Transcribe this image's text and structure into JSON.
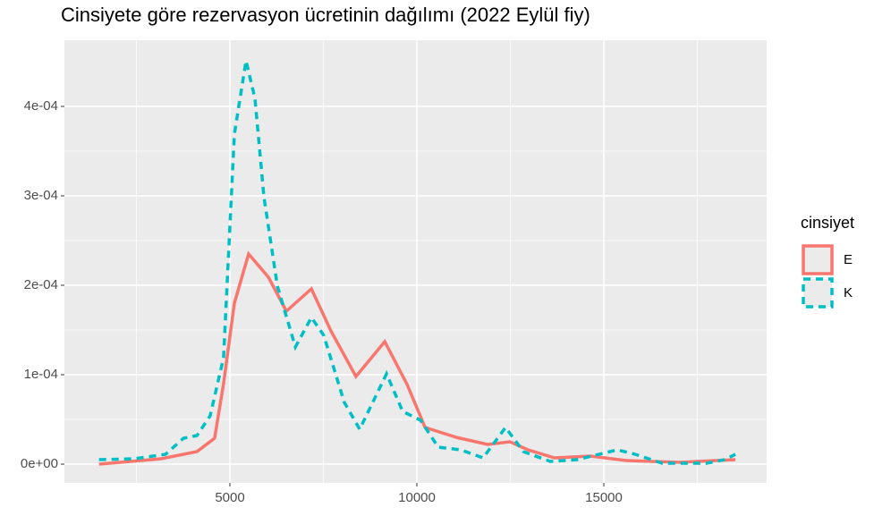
{
  "chart_data": {
    "type": "line",
    "title": "Cinsiyete göre rezervasyon ücretinin dağılımı (2022 Eylül fiy)",
    "legend_title": "cinsiyet",
    "legend": "right",
    "grid": true,
    "xlim": [
      574,
      19354
    ],
    "ylim": [
      -2.1e-05,
      0.000474
    ],
    "xticks": [
      5000,
      10000,
      15000
    ],
    "xminor": [
      2500,
      7500,
      12500,
      17500
    ],
    "yticks": [
      {
        "value": 0,
        "label": "0e+00"
      },
      {
        "value": 0.0001,
        "label": "1e-04"
      },
      {
        "value": 0.0002,
        "label": "2e-04"
      },
      {
        "value": 0.0003,
        "label": "3e-04"
      },
      {
        "value": 0.0004,
        "label": "4e-04"
      }
    ],
    "yminor": [
      5e-05,
      0.00015,
      0.00025,
      0.00035
    ],
    "series": [
      {
        "name": "E",
        "color": "#f8766d",
        "linetype": "solid",
        "x": [
          1500,
          3160,
          4120,
          4590,
          4830,
          5120,
          5500,
          6030,
          6510,
          7180,
          7700,
          8370,
          9140,
          9740,
          10220,
          11050,
          11890,
          12490,
          12970,
          13680,
          14640,
          15600,
          17030,
          17990,
          18520
        ],
        "values": [
          0,
          6e-06,
          1.4e-05,
          2.9e-05,
          9e-05,
          0.00018,
          0.000235,
          0.000209,
          0.000171,
          0.000196,
          0.000149,
          9.8e-05,
          0.000137,
          8.9e-05,
          4.1e-05,
          3e-05,
          2.2e-05,
          2.5e-05,
          1.6e-05,
          7e-06,
          9e-06,
          4e-06,
          2e-06,
          4e-06,
          5e-06
        ]
      },
      {
        "name": "K",
        "color": "#00bfc4",
        "linetype": "dashed",
        "x": [
          1500,
          2440,
          3280,
          3760,
          4120,
          4470,
          4830,
          5120,
          5430,
          5670,
          5910,
          6270,
          6750,
          7180,
          7510,
          8060,
          8470,
          9190,
          9620,
          10100,
          10570,
          11170,
          11770,
          12370,
          12850,
          13570,
          14280,
          15360,
          15840,
          16560,
          17750,
          18230,
          18520
        ],
        "values": [
          5e-06,
          6e-06,
          1.1e-05,
          2.9e-05,
          3.2e-05,
          5.4e-05,
          0.000119,
          0.000369,
          0.000451,
          0.000409,
          0.000299,
          0.000199,
          0.000131,
          0.000164,
          0.000144,
          6.9e-05,
          3.9e-05,
          0.000101,
          5.9e-05,
          4.9e-05,
          1.9e-05,
          1.6e-05,
          7e-06,
          4.1e-05,
          1.4e-05,
          3e-06,
          5e-06,
          1.6e-05,
          1.1e-05,
          1e-06,
          1e-06,
          5e-06,
          1.1e-05
        ]
      }
    ]
  }
}
